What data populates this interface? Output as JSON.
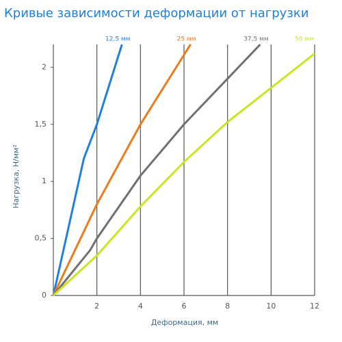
{
  "chart_data": {
    "type": "line",
    "title": "Кривые зависимости деформации от нагрузки",
    "x_label": "Деформация, мм",
    "y_label": "Нагрузка, Н/мм²",
    "xlim": [
      0,
      12
    ],
    "ylim": [
      0,
      2.2
    ],
    "xticks": [
      2,
      4,
      6,
      8,
      10,
      12
    ],
    "yticks": [
      0,
      {
        "value": 0.5,
        "label": "0,5"
      },
      1,
      {
        "value": 1.5,
        "label": "1,5"
      },
      2
    ],
    "grid": "x",
    "series": [
      {
        "name": "12,5 мм",
        "color": "#1f7fe0",
        "x": [
          0,
          1.4,
          2,
          3.15
        ],
        "values": [
          0,
          1.2,
          1.5,
          2.2
        ]
      },
      {
        "name": "25 мм",
        "color": "#ee7a1a",
        "x": [
          0,
          2,
          4,
          6.3
        ],
        "values": [
          0,
          0.8,
          1.5,
          2.2
        ]
      },
      {
        "name": "37,5 мм",
        "color": "#707070",
        "x": [
          0,
          1.7,
          2,
          4,
          6,
          8,
          9.5
        ],
        "values": [
          0,
          0.4,
          0.5,
          1.05,
          1.5,
          1.9,
          2.2
        ]
      },
      {
        "name": "50 мм",
        "color": "#c8e61e",
        "x": [
          0,
          2,
          4,
          6,
          8,
          10,
          12
        ],
        "values": [
          0,
          0.35,
          0.78,
          1.17,
          1.52,
          1.82,
          2.12
        ]
      }
    ]
  }
}
